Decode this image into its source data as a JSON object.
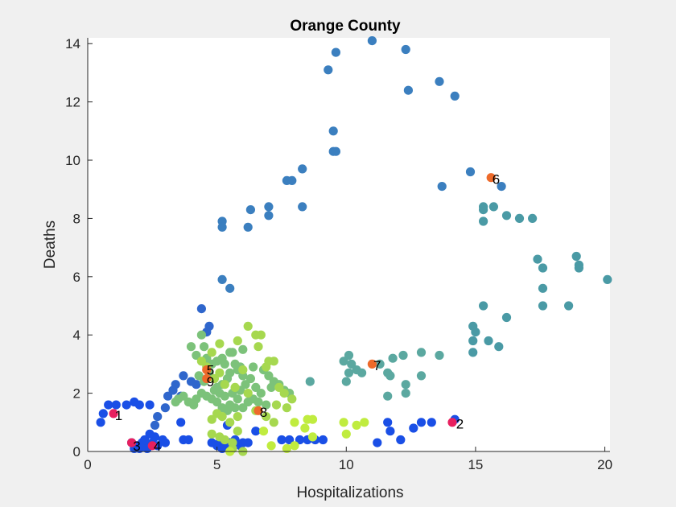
{
  "chart_data": {
    "type": "scatter",
    "title": "Orange County",
    "xlabel": "Hospitalizations",
    "ylabel": "Deaths",
    "xlim": [
      0,
      20.2
    ],
    "ylim": [
      0,
      14.2
    ],
    "xticks": [
      "0",
      "5",
      "10",
      "15",
      "20"
    ],
    "yticks": [
      "0",
      "2",
      "4",
      "6",
      "8",
      "10",
      "12",
      "14"
    ],
    "grid": false,
    "legend": "none",
    "series": [
      {
        "color": "#1a4fe6",
        "points": [
          [
            0.5,
            1.0
          ],
          [
            0.6,
            1.3
          ],
          [
            0.8,
            1.6
          ],
          [
            1.1,
            1.6
          ],
          [
            1.5,
            1.6
          ],
          [
            1.8,
            1.7
          ],
          [
            2.0,
            1.6
          ],
          [
            2.4,
            1.6
          ],
          [
            1.7,
            0.3
          ],
          [
            1.8,
            0.1
          ],
          [
            1.9,
            0.2
          ],
          [
            2.0,
            0.1
          ],
          [
            2.1,
            0.3
          ],
          [
            2.2,
            0.2
          ],
          [
            2.3,
            0.1
          ],
          [
            2.2,
            0.4
          ],
          [
            2.5,
            0.3
          ],
          [
            2.6,
            0.5
          ],
          [
            2.7,
            0.2
          ],
          [
            3.0,
            0.3
          ],
          [
            2.9,
            0.4
          ],
          [
            2.4,
            0.6
          ],
          [
            3.6,
            1.0
          ],
          [
            3.7,
            0.4
          ],
          [
            3.9,
            0.4
          ],
          [
            4.8,
            0.3
          ],
          [
            5.0,
            0.2
          ],
          [
            5.1,
            0.3
          ],
          [
            5.2,
            0.1
          ],
          [
            5.3,
            0.2
          ],
          [
            5.5,
            0.3
          ],
          [
            5.6,
            0.1
          ],
          [
            5.7,
            0.4
          ],
          [
            5.9,
            0.2
          ],
          [
            6.0,
            0.3
          ],
          [
            6.2,
            0.3
          ],
          [
            5.4,
            0.9
          ],
          [
            6.5,
            0.7
          ],
          [
            7.5,
            0.4
          ],
          [
            7.8,
            0.4
          ],
          [
            8.2,
            0.4
          ],
          [
            8.5,
            0.4
          ],
          [
            8.8,
            0.4
          ],
          [
            9.1,
            0.4
          ],
          [
            11.2,
            0.3
          ],
          [
            11.6,
            1.0
          ],
          [
            11.7,
            0.7
          ],
          [
            12.1,
            0.4
          ],
          [
            12.6,
            0.8
          ],
          [
            12.9,
            1.0
          ],
          [
            13.3,
            1.0
          ],
          [
            14.2,
            1.1
          ]
        ]
      },
      {
        "color": "#2f66cc",
        "points": [
          [
            2.6,
            0.9
          ],
          [
            2.7,
            1.2
          ],
          [
            3.0,
            1.5
          ],
          [
            3.1,
            1.9
          ],
          [
            3.3,
            2.1
          ],
          [
            3.4,
            2.3
          ],
          [
            3.7,
            2.6
          ],
          [
            3.6,
            1.9
          ],
          [
            4.0,
            2.4
          ],
          [
            4.2,
            2.3
          ],
          [
            4.4,
            4.9
          ],
          [
            4.7,
            4.3
          ],
          [
            4.6,
            4.1
          ]
        ]
      },
      {
        "color": "#3b7fbf",
        "points": [
          [
            5.2,
            7.9
          ],
          [
            5.2,
            7.7
          ],
          [
            5.2,
            5.9
          ],
          [
            5.5,
            5.6
          ],
          [
            6.2,
            7.7
          ],
          [
            6.3,
            8.3
          ],
          [
            7.0,
            8.4
          ],
          [
            7.0,
            8.1
          ],
          [
            7.7,
            9.3
          ],
          [
            7.9,
            9.3
          ],
          [
            8.3,
            8.4
          ],
          [
            8.3,
            9.7
          ],
          [
            9.3,
            13.1
          ],
          [
            9.6,
            13.7
          ],
          [
            9.5,
            11.0
          ],
          [
            9.5,
            10.3
          ],
          [
            9.6,
            10.3
          ],
          [
            11.0,
            14.1
          ],
          [
            12.3,
            13.8
          ],
          [
            12.4,
            12.4
          ],
          [
            13.6,
            12.7
          ],
          [
            14.2,
            12.2
          ],
          [
            13.7,
            9.1
          ],
          [
            14.8,
            9.6
          ],
          [
            16.0,
            9.1
          ]
        ]
      },
      {
        "color": "#4a9aa5",
        "points": [
          [
            15.3,
            8.4
          ],
          [
            15.3,
            8.3
          ],
          [
            15.3,
            7.9
          ],
          [
            15.7,
            8.4
          ],
          [
            16.2,
            8.1
          ],
          [
            16.7,
            8.0
          ],
          [
            17.2,
            8.0
          ],
          [
            17.4,
            6.6
          ],
          [
            17.6,
            6.3
          ],
          [
            17.6,
            5.6
          ],
          [
            17.6,
            5.0
          ],
          [
            18.6,
            5.0
          ],
          [
            18.9,
            6.7
          ],
          [
            19.0,
            6.4
          ],
          [
            19.0,
            6.3
          ],
          [
            20.1,
            5.9
          ],
          [
            14.9,
            4.3
          ],
          [
            15.0,
            4.1
          ],
          [
            14.9,
            3.8
          ],
          [
            15.3,
            5.0
          ],
          [
            15.5,
            3.8
          ],
          [
            15.9,
            3.6
          ],
          [
            16.2,
            4.6
          ],
          [
            14.9,
            3.4
          ]
        ]
      },
      {
        "color": "#5ba8a0",
        "points": [
          [
            9.9,
            3.1
          ],
          [
            10.1,
            3.3
          ],
          [
            10.2,
            3.0
          ],
          [
            10.4,
            2.8
          ],
          [
            10.1,
            2.7
          ],
          [
            10.0,
            2.4
          ],
          [
            10.6,
            2.7
          ],
          [
            11.3,
            3.0
          ],
          [
            11.6,
            2.7
          ],
          [
            11.7,
            2.6
          ],
          [
            11.8,
            3.2
          ],
          [
            11.6,
            1.9
          ],
          [
            12.2,
            3.3
          ],
          [
            12.3,
            2.3
          ],
          [
            12.3,
            2.0
          ],
          [
            12.9,
            3.4
          ],
          [
            12.9,
            2.6
          ],
          [
            13.6,
            3.3
          ],
          [
            8.6,
            2.4
          ]
        ]
      },
      {
        "color": "#7cc27a",
        "points": [
          [
            4.0,
            3.6
          ],
          [
            4.2,
            3.3
          ],
          [
            4.4,
            4.0
          ],
          [
            4.5,
            3.6
          ],
          [
            4.6,
            3.2
          ],
          [
            4.8,
            3.0
          ],
          [
            5.0,
            3.1
          ],
          [
            5.2,
            3.2
          ],
          [
            5.3,
            3.0
          ],
          [
            5.5,
            3.4
          ],
          [
            5.6,
            3.4
          ],
          [
            5.7,
            3.0
          ],
          [
            5.8,
            2.8
          ],
          [
            6.0,
            2.6
          ],
          [
            5.5,
            2.7
          ],
          [
            5.4,
            2.5
          ],
          [
            5.2,
            2.3
          ],
          [
            5.0,
            2.2
          ],
          [
            4.9,
            2.1
          ],
          [
            5.1,
            2.0
          ],
          [
            5.3,
            1.9
          ],
          [
            5.6,
            2.0
          ],
          [
            5.8,
            1.8
          ],
          [
            5.9,
            2.1
          ],
          [
            6.1,
            2.3
          ],
          [
            6.3,
            2.5
          ],
          [
            6.5,
            2.2
          ],
          [
            6.7,
            2.0
          ],
          [
            6.4,
            1.8
          ],
          [
            6.2,
            1.7
          ],
          [
            6.0,
            1.5
          ],
          [
            5.7,
            1.5
          ],
          [
            5.5,
            1.6
          ],
          [
            5.4,
            1.4
          ],
          [
            5.2,
            1.5
          ],
          [
            5.0,
            1.7
          ],
          [
            4.8,
            1.8
          ],
          [
            4.6,
            1.9
          ],
          [
            4.4,
            2.0
          ],
          [
            4.2,
            1.8
          ],
          [
            4.1,
            1.6
          ],
          [
            3.9,
            1.7
          ],
          [
            3.7,
            1.9
          ],
          [
            3.5,
            1.8
          ],
          [
            3.4,
            1.7
          ],
          [
            4.3,
            2.6
          ],
          [
            4.5,
            2.4
          ],
          [
            4.7,
            2.7
          ],
          [
            5.9,
            2.9
          ],
          [
            6.0,
            3.5
          ],
          [
            6.4,
            2.9
          ],
          [
            6.8,
            2.8
          ],
          [
            7.0,
            2.6
          ],
          [
            7.2,
            2.4
          ],
          [
            7.4,
            2.3
          ],
          [
            7.6,
            2.1
          ],
          [
            7.8,
            2.0
          ],
          [
            7.1,
            2.2
          ],
          [
            6.9,
            1.6
          ],
          [
            6.6,
            1.7
          ]
        ]
      },
      {
        "color": "#a6d84f",
        "points": [
          [
            4.4,
            3.1
          ],
          [
            4.6,
            2.9
          ],
          [
            4.8,
            3.4
          ],
          [
            5.1,
            3.7
          ],
          [
            5.8,
            3.8
          ],
          [
            6.2,
            4.3
          ],
          [
            6.5,
            4.0
          ],
          [
            6.7,
            4.0
          ],
          [
            6.6,
            3.6
          ],
          [
            7.0,
            3.1
          ],
          [
            7.2,
            3.1
          ],
          [
            6.9,
            2.9
          ],
          [
            7.4,
            2.2
          ],
          [
            7.6,
            2.0
          ],
          [
            7.9,
            1.8
          ],
          [
            7.3,
            1.6
          ],
          [
            7.7,
            1.5
          ],
          [
            5.3,
            2.3
          ],
          [
            5.1,
            2.7
          ],
          [
            4.9,
            2.5
          ],
          [
            6.0,
            2.8
          ],
          [
            5.7,
            2.2
          ],
          [
            6.2,
            2.0
          ],
          [
            6.5,
            1.4
          ],
          [
            6.9,
            1.2
          ],
          [
            7.2,
            1.0
          ],
          [
            5.0,
            1.3
          ],
          [
            4.8,
            1.1
          ],
          [
            5.2,
            1.2
          ],
          [
            5.5,
            1.0
          ],
          [
            5.8,
            1.2
          ],
          [
            4.8,
            0.6
          ],
          [
            5.1,
            0.5
          ],
          [
            5.3,
            0.4
          ],
          [
            5.6,
            0.3
          ],
          [
            5.8,
            0.7
          ],
          [
            5.6,
            0.1
          ],
          [
            6.0,
            0.0
          ]
        ]
      },
      {
        "color": "#c0ec3f",
        "points": [
          [
            6.8,
            0.7
          ],
          [
            7.1,
            0.2
          ],
          [
            7.7,
            0.1
          ],
          [
            8.0,
            0.2
          ],
          [
            8.0,
            1.0
          ],
          [
            8.5,
            1.1
          ],
          [
            8.7,
            1.1
          ],
          [
            8.4,
            0.8
          ],
          [
            8.7,
            0.5
          ],
          [
            9.9,
            1.0
          ],
          [
            10.0,
            0.6
          ],
          [
            10.4,
            0.9
          ],
          [
            10.7,
            1.0
          ],
          [
            5.5,
            0.0
          ]
        ]
      },
      {
        "color": "#e8205f",
        "points": [
          [
            1.0,
            1.3
          ],
          [
            14.1,
            1.0
          ],
          [
            1.7,
            0.3
          ],
          [
            2.5,
            0.2
          ]
        ]
      },
      {
        "color": "#ee6a2a",
        "points": [
          [
            4.6,
            2.8
          ],
          [
            4.6,
            2.5
          ],
          [
            6.6,
            1.4
          ],
          [
            11.0,
            3.0
          ],
          [
            15.6,
            9.4
          ]
        ]
      }
    ],
    "annotations": [
      {
        "text": "1",
        "x": 1.05,
        "y": 1.25
      },
      {
        "text": "2",
        "x": 14.25,
        "y": 0.95
      },
      {
        "text": "3",
        "x": 1.75,
        "y": 0.2
      },
      {
        "text": "4",
        "x": 2.55,
        "y": 0.2
      },
      {
        "text": "5",
        "x": 4.6,
        "y": 2.8
      },
      {
        "text": "6",
        "x": 15.65,
        "y": 9.35
      },
      {
        "text": "7",
        "x": 11.05,
        "y": 2.95
      },
      {
        "text": "8",
        "x": 6.65,
        "y": 1.35
      },
      {
        "text": "9",
        "x": 4.6,
        "y": 2.4
      }
    ]
  }
}
